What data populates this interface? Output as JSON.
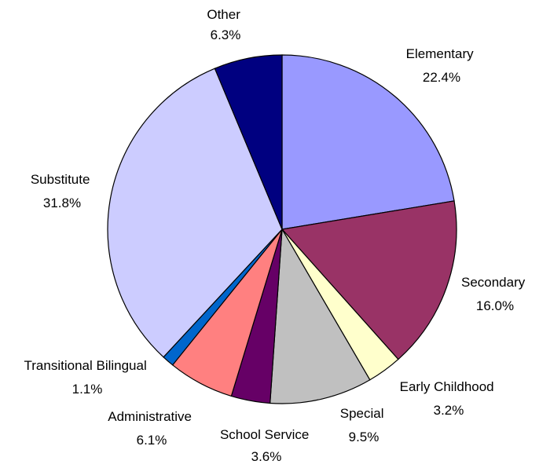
{
  "chart_data": {
    "type": "pie",
    "title": "",
    "start": "12 o'clock",
    "direction": "clockwise",
    "slices": [
      {
        "label": "Elementary",
        "value": 22.4,
        "value_label": "22.4%",
        "color": "#9999FF"
      },
      {
        "label": "Secondary",
        "value": 16.0,
        "value_label": "16.0%",
        "color": "#993366"
      },
      {
        "label": "Early Childhood",
        "value": 3.2,
        "value_label": "3.2%",
        "color": "#FFFFCC"
      },
      {
        "label": "Special",
        "value": 9.5,
        "value_label": "9.5%",
        "color": "#C0C0C0"
      },
      {
        "label": "School Service",
        "value": 3.6,
        "value_label": "3.6%",
        "color": "#660066"
      },
      {
        "label": "Administrative",
        "value": 6.1,
        "value_label": "6.1%",
        "color": "#FF8080"
      },
      {
        "label": "Transitional Bilingual",
        "value": 1.1,
        "value_label": "1.1%",
        "color": "#0066CC"
      },
      {
        "label": "Substitute",
        "value": 31.8,
        "value_label": "31.8%",
        "color": "#CCCCFF"
      },
      {
        "label": "Other",
        "value": 6.3,
        "value_label": "6.3%",
        "color": "#000080"
      }
    ]
  }
}
